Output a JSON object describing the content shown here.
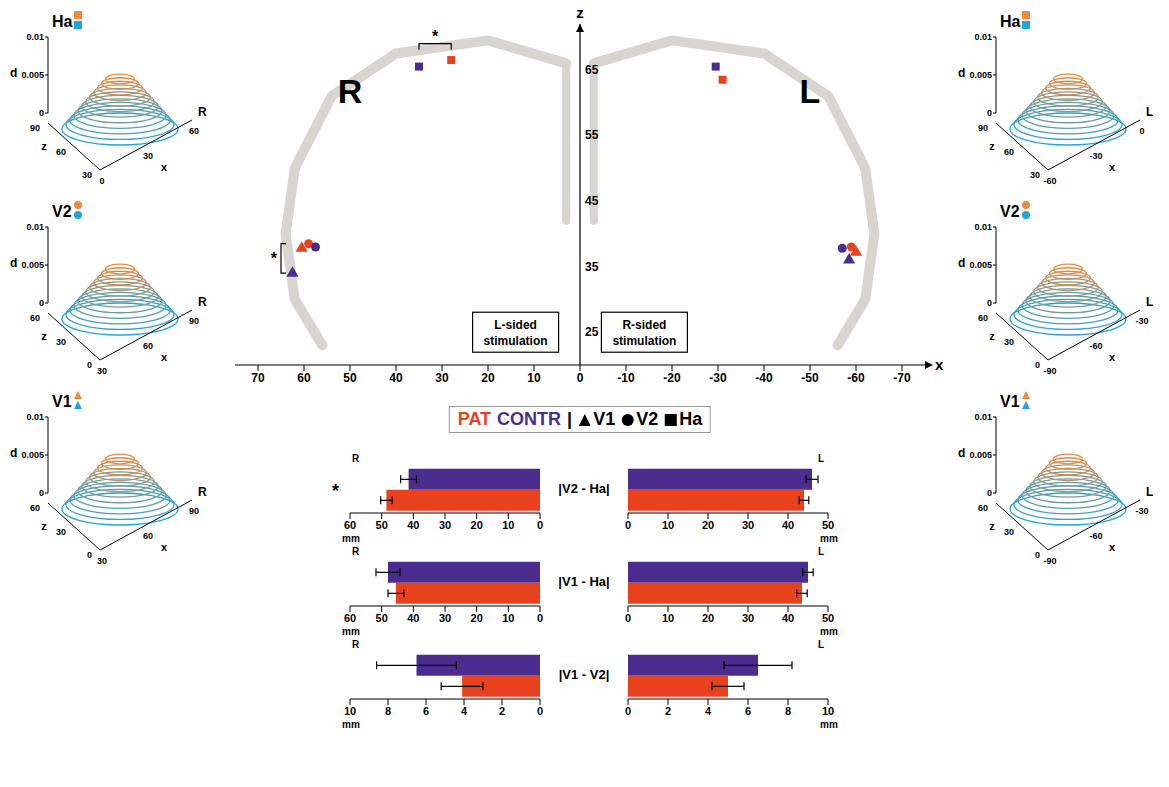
{
  "chart_data": [
    {
      "type": "scatter",
      "xlim": [
        75,
        -75
      ],
      "ylim": [
        20,
        72
      ],
      "xticks": [
        70,
        60,
        50,
        40,
        30,
        20,
        10,
        0,
        -10,
        -20,
        -30,
        -40,
        -50,
        -60,
        -70
      ],
      "yticks": [
        25,
        35,
        45,
        55,
        65
      ],
      "x_label": "x",
      "y_label": "z",
      "series": [
        {
          "name": "PAT",
          "color": "#e8411e",
          "region": "V1",
          "marker": "triangle",
          "x": [
            60.5,
            -60
          ],
          "y": [
            37.8,
            37.2
          ]
        },
        {
          "name": "PAT",
          "color": "#e8411e",
          "region": "V2",
          "marker": "circle",
          "x": [
            59,
            -59
          ],
          "y": [
            38.5,
            38
          ]
        },
        {
          "name": "PAT",
          "color": "#e8411e",
          "region": "Ha",
          "marker": "square",
          "x": [
            28,
            -31
          ],
          "y": [
            66.5,
            63.5
          ]
        },
        {
          "name": "CONTR",
          "color": "#4b2c8f",
          "region": "V1",
          "marker": "triangle",
          "x": [
            62.5,
            -58.5
          ],
          "y": [
            34,
            36
          ]
        },
        {
          "name": "CONTR",
          "color": "#4b2c8f",
          "region": "V2",
          "marker": "circle",
          "x": [
            57.5,
            -57
          ],
          "y": [
            38,
            37.8
          ]
        },
        {
          "name": "CONTR",
          "color": "#4b2c8f",
          "region": "Ha",
          "marker": "square",
          "x": [
            35,
            -29.5
          ],
          "y": [
            65.5,
            65.5
          ]
        }
      ],
      "labels": [
        {
          "text": "R",
          "x": 50,
          "y": 60
        },
        {
          "text": "L",
          "x": -50,
          "y": 60
        },
        {
          "text": "L-sided stimulation",
          "x": 14,
          "y": 25
        },
        {
          "text": "R-sided stimulation",
          "x": -14,
          "y": 25
        }
      ],
      "annotations": [
        {
          "text": "*",
          "x": [
            35,
            28
          ],
          "y": [
            69,
            69
          ]
        },
        {
          "text": "*",
          "x": [
            65,
            65
          ],
          "y": [
            34,
            38.5
          ]
        }
      ],
      "legend": "bottom",
      "legend_separator": "|"
    },
    {
      "type": "bar",
      "orientation": "horizontal",
      "title": "|V2 - Ha|",
      "panels": [
        {
          "subtitle": "R",
          "x_label": "mm",
          "xlim": [
            60,
            0
          ],
          "xticks": [
            60,
            50,
            40,
            30,
            20,
            10,
            0
          ],
          "categories": [
            null
          ],
          "annotation": "*",
          "series": [
            {
              "name": "CONTR",
              "color": "#4b2c8f",
              "values": [
                41.5
              ],
              "error": [
                2.5
              ]
            },
            {
              "name": "PAT",
              "color": "#e8411e",
              "values": [
                48.5
              ],
              "error": [
                1.8
              ]
            }
          ]
        },
        {
          "subtitle": "L",
          "x_label": "mm",
          "xlim": [
            0,
            50
          ],
          "xticks": [
            0,
            10,
            20,
            30,
            40,
            50
          ],
          "categories": [
            null
          ],
          "series": [
            {
              "name": "CONTR",
              "color": "#4b2c8f",
              "values": [
                46
              ],
              "error": [
                1.5
              ]
            },
            {
              "name": "PAT",
              "color": "#e8411e",
              "values": [
                44
              ],
              "error": [
                1.2
              ]
            }
          ]
        }
      ]
    },
    {
      "type": "bar",
      "orientation": "horizontal",
      "title": "|V1 - Ha|",
      "panels": [
        {
          "subtitle": "R",
          "x_label": "mm",
          "xlim": [
            60,
            0
          ],
          "xticks": [
            60,
            50,
            40,
            30,
            20,
            10,
            0
          ],
          "categories": [
            null
          ],
          "series": [
            {
              "name": "CONTR",
              "color": "#4b2c8f",
              "values": [
                48
              ],
              "error": [
                3.8
              ]
            },
            {
              "name": "PAT",
              "color": "#e8411e",
              "values": [
                45.5
              ],
              "error": [
                2.5
              ]
            }
          ]
        },
        {
          "subtitle": "L",
          "x_label": "mm",
          "xlim": [
            0,
            50
          ],
          "xticks": [
            0,
            10,
            20,
            30,
            40,
            50
          ],
          "categories": [
            null
          ],
          "series": [
            {
              "name": "CONTR",
              "color": "#4b2c8f",
              "values": [
                45
              ],
              "error": [
                1.3
              ]
            },
            {
              "name": "PAT",
              "color": "#e8411e",
              "values": [
                43.5
              ],
              "error": [
                1.3
              ]
            }
          ]
        }
      ]
    },
    {
      "type": "bar",
      "orientation": "horizontal",
      "title": "|V1 - V2|",
      "panels": [
        {
          "subtitle": "R",
          "x_label": "mm",
          "xlim": [
            10,
            0
          ],
          "xticks": [
            10,
            8,
            6,
            4,
            2,
            0
          ],
          "categories": [
            null
          ],
          "series": [
            {
              "name": "CONTR",
              "color": "#4b2c8f",
              "values": [
                6.5
              ],
              "error": [
                2.1
              ]
            },
            {
              "name": "PAT",
              "color": "#e8411e",
              "values": [
                4.1
              ],
              "error": [
                1.1
              ]
            }
          ]
        },
        {
          "subtitle": "L",
          "x_label": "mm",
          "xlim": [
            0,
            10
          ],
          "xticks": [
            0,
            2,
            4,
            6,
            8,
            10
          ],
          "categories": [
            null
          ],
          "series": [
            {
              "name": "CONTR",
              "color": "#4b2c8f",
              "values": [
                6.5
              ],
              "error": [
                1.7
              ]
            },
            {
              "name": "PAT",
              "color": "#e8411e",
              "values": [
                5
              ],
              "error": [
                0.8
              ]
            }
          ]
        }
      ]
    }
  ],
  "surfaces": [
    {
      "title": "Ha",
      "side": "R",
      "marker": "square",
      "colors": [
        "#f08a3c",
        "#1fa5d8"
      ],
      "d_label": "d",
      "z_label": "z",
      "x_label": "x",
      "d_ticks": [
        0,
        0.005,
        0.01
      ],
      "z_ticks": [
        90,
        60,
        30
      ],
      "x_ticks": [
        0,
        30,
        60
      ]
    },
    {
      "title": "V2",
      "side": "R",
      "marker": "circle",
      "colors": [
        "#f08a3c",
        "#1fa5d8"
      ],
      "d_label": "d",
      "z_label": "z",
      "x_label": "x",
      "d_ticks": [
        0,
        0.005,
        0.01
      ],
      "z_ticks": [
        60,
        30,
        0
      ],
      "x_ticks": [
        30,
        60,
        90
      ]
    },
    {
      "title": "V1",
      "side": "R",
      "marker": "triangle",
      "colors": [
        "#f08a3c",
        "#1fa5d8"
      ],
      "d_label": "d",
      "z_label": "z",
      "x_label": "x",
      "d_ticks": [
        0,
        0.005,
        0.01
      ],
      "z_ticks": [
        60,
        30,
        0
      ],
      "x_ticks": [
        30,
        60,
        90
      ]
    },
    {
      "title": "Ha",
      "side": "L",
      "marker": "square",
      "colors": [
        "#f08a3c",
        "#1fa5d8"
      ],
      "d_label": "d",
      "z_label": "z",
      "x_label": "x",
      "d_ticks": [
        0,
        0.005,
        0.01
      ],
      "z_ticks": [
        90,
        60,
        30
      ],
      "x_ticks": [
        -60,
        -30,
        0
      ]
    },
    {
      "title": "V2",
      "side": "L",
      "marker": "circle",
      "colors": [
        "#f08a3c",
        "#1fa5d8"
      ],
      "d_label": "d",
      "z_label": "z",
      "x_label": "x",
      "d_ticks": [
        0,
        0.005,
        0.01
      ],
      "z_ticks": [
        60,
        30,
        0
      ],
      "x_ticks": [
        -90,
        -60,
        -30
      ]
    },
    {
      "title": "V1",
      "side": "L",
      "marker": "triangle",
      "colors": [
        "#f08a3c",
        "#1fa5d8"
      ],
      "d_label": "d",
      "z_label": "z",
      "x_label": "x",
      "d_ticks": [
        0,
        0.005,
        0.01
      ],
      "z_ticks": [
        60,
        30,
        0
      ],
      "x_ticks": [
        -90,
        -60,
        -30
      ]
    }
  ]
}
